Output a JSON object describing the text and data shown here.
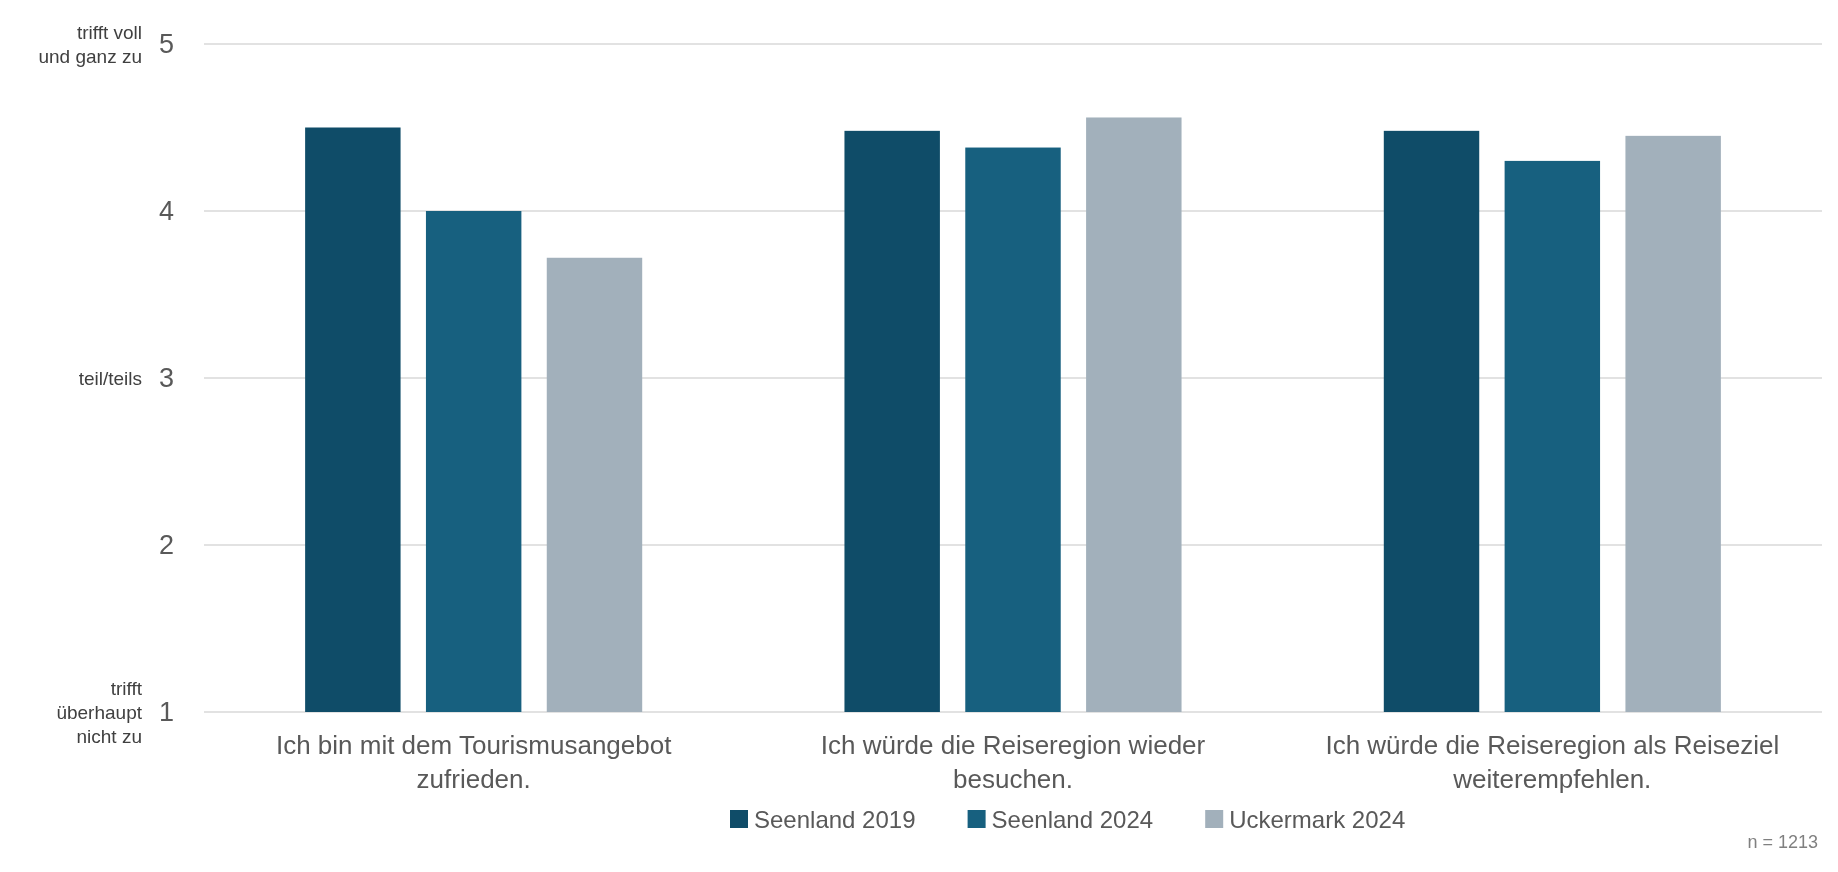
{
  "chart_data": {
    "type": "bar",
    "categories": [
      "Ich bin mit dem Tourismusangebot zufrieden.",
      "Ich würde die Reiseregion wieder besuchen.",
      "Ich würde die Reiseregion als Reiseziel weiterempfehlen."
    ],
    "series": [
      {
        "name": "Seenland 2019",
        "color": "#0f4c68",
        "values": [
          4.5,
          4.48,
          4.48
        ]
      },
      {
        "name": "Seenland 2024",
        "color": "#17607f",
        "values": [
          4.0,
          4.38,
          4.3
        ]
      },
      {
        "name": "Uckermark 2024",
        "color": "#a2b0bb",
        "values": [
          3.72,
          4.56,
          4.45
        ]
      }
    ],
    "ylim": [
      1,
      5
    ],
    "yticks": [
      1,
      2,
      3,
      4,
      5
    ],
    "grid": "y",
    "legend": "bottom",
    "annotations": [
      "trifft voll und ganz zu",
      "teil/teils",
      "trifft überhaupt nicht zu",
      "n = 1213"
    ]
  }
}
